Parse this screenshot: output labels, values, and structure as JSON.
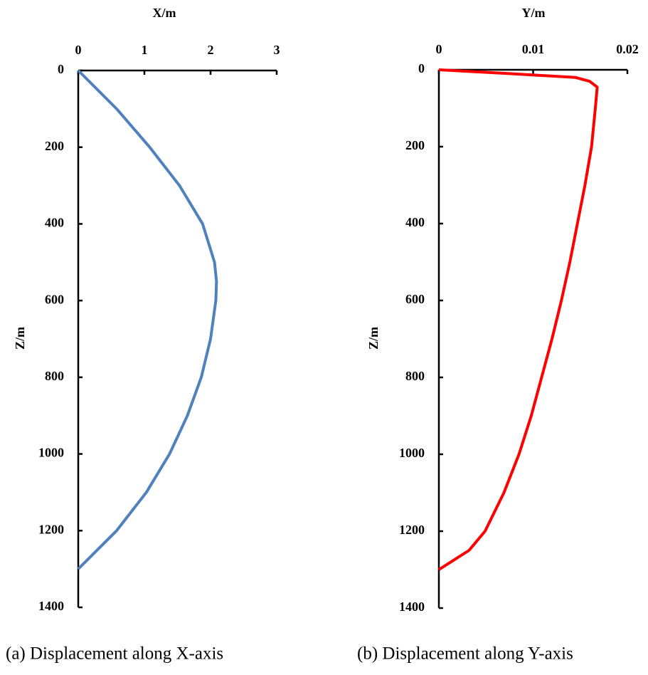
{
  "chart_data": [
    {
      "type": "line",
      "xlabel": "X/m",
      "ylabel": "Z/m",
      "caption": "(a) Displacement along X-axis",
      "color": "#4f81bd",
      "z": [
        0,
        100,
        200,
        300,
        400,
        500,
        550,
        600,
        700,
        800,
        900,
        1000,
        1100,
        1200,
        1300
      ],
      "values": [
        0,
        0.58,
        1.08,
        1.53,
        1.88,
        2.06,
        2.09,
        2.08,
        2.0,
        1.86,
        1.65,
        1.38,
        1.03,
        0.58,
        0
      ],
      "xlim": [
        0,
        3
      ],
      "xticks": [
        0,
        1,
        2,
        3
      ],
      "ylim": [
        0,
        1400
      ],
      "yticks": [
        0,
        200,
        400,
        600,
        800,
        1000,
        1200,
        1400
      ]
    },
    {
      "type": "line",
      "xlabel": "Y/m",
      "ylabel": "Z/m",
      "caption": "(b) Displacement along Y-axis",
      "color": "#ff0000",
      "z": [
        0,
        10,
        20,
        30,
        45,
        100,
        200,
        300,
        400,
        500,
        600,
        700,
        800,
        900,
        1000,
        1100,
        1200,
        1250,
        1300
      ],
      "values": [
        0,
        0.0075,
        0.0145,
        0.016,
        0.0168,
        0.0166,
        0.0162,
        0.0155,
        0.0147,
        0.0139,
        0.013,
        0.012,
        0.0109,
        0.0098,
        0.0085,
        0.0069,
        0.0049,
        0.0032,
        0
      ],
      "xlim": [
        0,
        0.02
      ],
      "xticks": [
        0,
        0.01,
        0.02
      ],
      "ylim": [
        0,
        1400
      ],
      "yticks": [
        0,
        200,
        400,
        600,
        800,
        1000,
        1200,
        1400
      ]
    }
  ]
}
